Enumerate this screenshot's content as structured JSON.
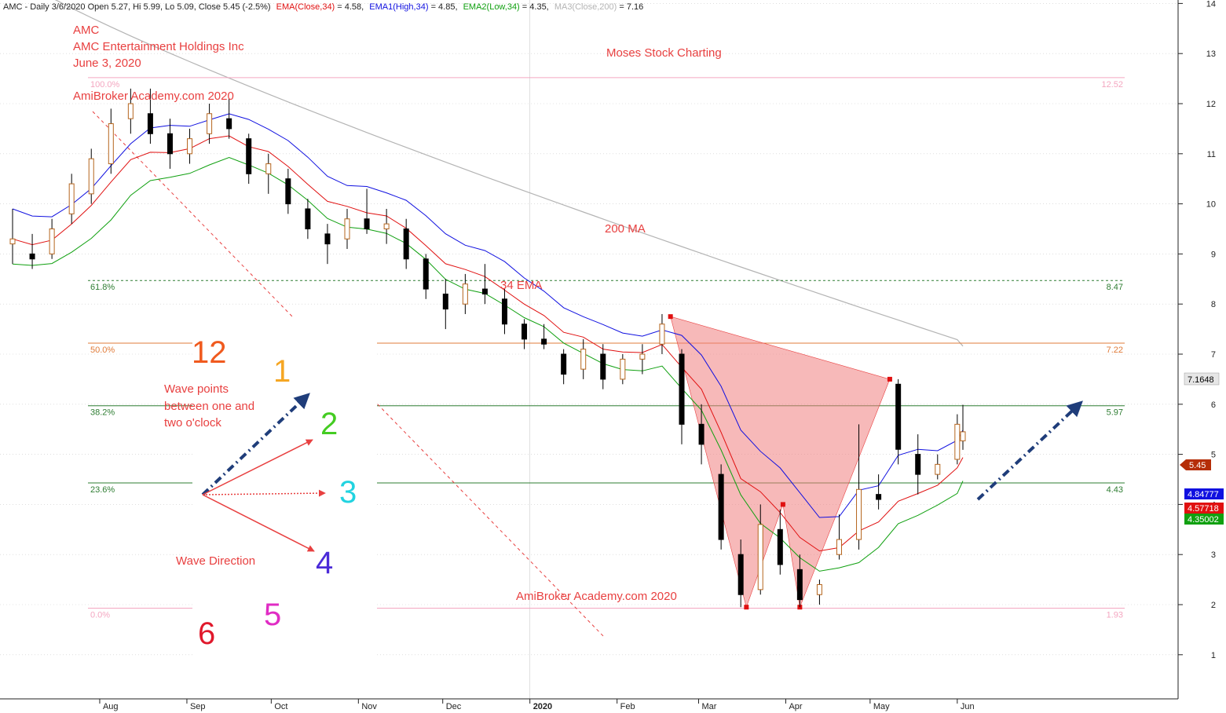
{
  "header": {
    "prefix": "AMC - Daily 3/6/2020 Open 5.27, Hi 5.99, Lo 5.09, Close 5.45 (-2.5%)",
    "ema": "EMA(Close,34)",
    "ema_val": " = 4.58,",
    "ema1": "EMA1(High,34)",
    "ema1_val": " = 4.85,",
    "ema2": "EMA2(Low,34)",
    "ema2_val": " = 4.35,",
    "ma3": "MA3(Close,200)",
    "ma3_val": " = 7.16"
  },
  "annotations": {
    "ticker": "AMC",
    "company": "AMC Entertainment Holdings Inc",
    "date": "June 3, 2020",
    "watermark_top": "AmiBroker Academy.com  2020",
    "brand": "Moses Stock Charting",
    "ma_label": "200 MA",
    "ema_label": "34 EMA",
    "watermark_bottom": "AmiBroker Academy.com 2020",
    "wave_points_1": "Wave points",
    "wave_points_2": "between one and",
    "wave_points_3": "two o'clock",
    "wave_direction": "Wave Direction"
  },
  "clock": {
    "numbers": [
      {
        "text": "12",
        "color": "#f05a1e"
      },
      {
        "text": "1",
        "color": "#f5a623"
      },
      {
        "text": "2",
        "color": "#44cc22"
      },
      {
        "text": "3",
        "color": "#22d3e0"
      },
      {
        "text": "4",
        "color": "#4b2bd8"
      },
      {
        "text": "5",
        "color": "#e02cc4"
      },
      {
        "text": "6",
        "color": "#e0192c"
      }
    ]
  },
  "price_labels": {
    "ma200": "7.1648",
    "close": "5.45",
    "ema_high": "4.84777",
    "ema_close": "4.57718",
    "ema_low": "4.35002"
  },
  "fib_levels": [
    {
      "pct": "100.0%",
      "value": "12.52",
      "price": 12.52,
      "color": "#f4a6c0",
      "dashed": false
    },
    {
      "pct": "61.8%",
      "value": "8.47",
      "price": 8.47,
      "color": "#2e7d32",
      "dashed": true
    },
    {
      "pct": "50.0%",
      "value": "7.22",
      "price": 7.22,
      "color": "#e07b39",
      "dashed": false
    },
    {
      "pct": "38.2%",
      "value": "5.97",
      "price": 5.97,
      "color": "#2e7d32",
      "dashed": false
    },
    {
      "pct": "23.6%",
      "value": "4.43",
      "price": 4.43,
      "color": "#2e7d32",
      "dashed": false
    },
    {
      "pct": "0.0%",
      "value": "1.93",
      "price": 1.93,
      "color": "#f4a6c0",
      "dashed": false
    }
  ],
  "colors": {
    "ema_close": "#e01010",
    "ema_high": "#1010e0",
    "ema_low": "#10a010",
    "ma200": "#b4b4b4",
    "pattern_fill": "#f08080",
    "arrow": "#1f3d7a",
    "annotation": "#e84040"
  },
  "chart_data": {
    "type": "candlestick",
    "ticker": "AMC",
    "ylim": [
      0.6,
      14.7
    ],
    "y_ticks": [
      1,
      2,
      3,
      4,
      5,
      6,
      7,
      8,
      9,
      10,
      11,
      12,
      13,
      14
    ],
    "x_ticks": [
      "Aug",
      "Sep",
      "Oct",
      "Nov",
      "Dec",
      "2020",
      "Feb",
      "Mar",
      "Apr",
      "May",
      "Jun"
    ],
    "harmonic_pattern_points": [
      {
        "date": "2020-02-20",
        "price": 7.75
      },
      {
        "date": "2020-03-18",
        "price": 1.95
      },
      {
        "date": "2020-03-31",
        "price": 4.0
      },
      {
        "date": "2020-04-06",
        "price": 1.95
      },
      {
        "date": "2020-05-08",
        "price": 6.5
      }
    ],
    "ohlc": [
      {
        "date": "2019-07-01",
        "o": 9.2,
        "h": 9.9,
        "l": 8.8,
        "c": 9.3
      },
      {
        "date": "2019-07-08",
        "o": 9.0,
        "h": 9.4,
        "l": 8.7,
        "c": 8.9
      },
      {
        "date": "2019-07-15",
        "o": 9.0,
        "h": 9.7,
        "l": 8.9,
        "c": 9.5
      },
      {
        "date": "2019-07-22",
        "o": 9.8,
        "h": 10.6,
        "l": 9.6,
        "c": 10.4
      },
      {
        "date": "2019-07-29",
        "o": 10.2,
        "h": 11.1,
        "l": 10.0,
        "c": 10.9
      },
      {
        "date": "2019-08-05",
        "o": 10.8,
        "h": 11.9,
        "l": 10.6,
        "c": 11.6
      },
      {
        "date": "2019-08-12",
        "o": 11.7,
        "h": 12.3,
        "l": 11.4,
        "c": 12.0
      },
      {
        "date": "2019-08-19",
        "o": 11.8,
        "h": 12.3,
        "l": 11.2,
        "c": 11.4
      },
      {
        "date": "2019-08-26",
        "o": 11.4,
        "h": 11.7,
        "l": 10.7,
        "c": 11.0
      },
      {
        "date": "2019-09-02",
        "o": 11.0,
        "h": 11.5,
        "l": 10.8,
        "c": 11.3
      },
      {
        "date": "2019-09-09",
        "o": 11.4,
        "h": 12.0,
        "l": 11.2,
        "c": 11.8
      },
      {
        "date": "2019-09-16",
        "o": 11.7,
        "h": 12.1,
        "l": 11.3,
        "c": 11.5
      },
      {
        "date": "2019-09-23",
        "o": 11.3,
        "h": 11.4,
        "l": 10.4,
        "c": 10.6
      },
      {
        "date": "2019-09-30",
        "o": 10.6,
        "h": 11.0,
        "l": 10.2,
        "c": 10.8
      },
      {
        "date": "2019-10-07",
        "o": 10.5,
        "h": 10.7,
        "l": 9.8,
        "c": 10.0
      },
      {
        "date": "2019-10-14",
        "o": 9.9,
        "h": 10.1,
        "l": 9.3,
        "c": 9.5
      },
      {
        "date": "2019-10-21",
        "o": 9.4,
        "h": 9.6,
        "l": 8.8,
        "c": 9.2
      },
      {
        "date": "2019-10-28",
        "o": 9.3,
        "h": 9.9,
        "l": 9.1,
        "c": 9.7
      },
      {
        "date": "2019-11-04",
        "o": 9.7,
        "h": 10.3,
        "l": 9.4,
        "c": 9.5
      },
      {
        "date": "2019-11-11",
        "o": 9.5,
        "h": 9.9,
        "l": 9.2,
        "c": 9.6
      },
      {
        "date": "2019-11-18",
        "o": 9.5,
        "h": 9.7,
        "l": 8.7,
        "c": 8.9
      },
      {
        "date": "2019-11-25",
        "o": 8.9,
        "h": 9.0,
        "l": 8.1,
        "c": 8.3
      },
      {
        "date": "2019-12-02",
        "o": 8.2,
        "h": 8.5,
        "l": 7.5,
        "c": 7.9
      },
      {
        "date": "2019-12-09",
        "o": 8.0,
        "h": 8.6,
        "l": 7.8,
        "c": 8.4
      },
      {
        "date": "2019-12-16",
        "o": 8.3,
        "h": 8.8,
        "l": 8.0,
        "c": 8.2
      },
      {
        "date": "2019-12-23",
        "o": 8.1,
        "h": 8.3,
        "l": 7.4,
        "c": 7.6
      },
      {
        "date": "2019-12-30",
        "o": 7.6,
        "h": 7.7,
        "l": 7.1,
        "c": 7.3
      },
      {
        "date": "2020-01-06",
        "o": 7.3,
        "h": 7.6,
        "l": 7.1,
        "c": 7.2
      },
      {
        "date": "2020-01-13",
        "o": 7.0,
        "h": 7.1,
        "l": 6.4,
        "c": 6.6
      },
      {
        "date": "2020-01-20",
        "o": 6.7,
        "h": 7.3,
        "l": 6.5,
        "c": 7.1
      },
      {
        "date": "2020-01-27",
        "o": 7.0,
        "h": 7.2,
        "l": 6.3,
        "c": 6.5
      },
      {
        "date": "2020-02-03",
        "o": 6.5,
        "h": 7.0,
        "l": 6.4,
        "c": 6.9
      },
      {
        "date": "2020-02-10",
        "o": 6.9,
        "h": 7.2,
        "l": 6.6,
        "c": 7.0
      },
      {
        "date": "2020-02-17",
        "o": 7.2,
        "h": 7.8,
        "l": 7.0,
        "c": 7.6
      },
      {
        "date": "2020-02-24",
        "o": 7.0,
        "h": 7.1,
        "l": 5.2,
        "c": 5.6
      },
      {
        "date": "2020-03-02",
        "o": 5.6,
        "h": 6.0,
        "l": 4.8,
        "c": 5.2
      },
      {
        "date": "2020-03-09",
        "o": 4.6,
        "h": 4.8,
        "l": 3.1,
        "c": 3.3
      },
      {
        "date": "2020-03-16",
        "o": 3.0,
        "h": 3.3,
        "l": 1.95,
        "c": 2.2
      },
      {
        "date": "2020-03-23",
        "o": 2.3,
        "h": 4.0,
        "l": 2.2,
        "c": 3.6
      },
      {
        "date": "2020-03-30",
        "o": 3.5,
        "h": 3.9,
        "l": 2.6,
        "c": 2.8
      },
      {
        "date": "2020-04-06",
        "o": 2.7,
        "h": 3.0,
        "l": 1.95,
        "c": 2.1
      },
      {
        "date": "2020-04-13",
        "o": 2.2,
        "h": 2.5,
        "l": 2.0,
        "c": 2.4
      },
      {
        "date": "2020-04-20",
        "o": 3.0,
        "h": 3.8,
        "l": 2.9,
        "c": 3.3
      },
      {
        "date": "2020-04-27",
        "o": 3.3,
        "h": 5.6,
        "l": 3.1,
        "c": 4.3
      },
      {
        "date": "2020-05-04",
        "o": 4.2,
        "h": 4.6,
        "l": 3.9,
        "c": 4.1
      },
      {
        "date": "2020-05-11",
        "o": 6.4,
        "h": 6.5,
        "l": 4.8,
        "c": 5.1
      },
      {
        "date": "2020-05-18",
        "o": 5.0,
        "h": 5.4,
        "l": 4.2,
        "c": 4.6
      },
      {
        "date": "2020-05-25",
        "o": 4.6,
        "h": 5.0,
        "l": 4.5,
        "c": 4.8
      },
      {
        "date": "2020-06-01",
        "o": 4.9,
        "h": 5.8,
        "l": 4.8,
        "c": 5.6
      },
      {
        "date": "2020-06-03",
        "o": 5.27,
        "h": 5.99,
        "l": 5.09,
        "c": 5.45
      }
    ]
  }
}
